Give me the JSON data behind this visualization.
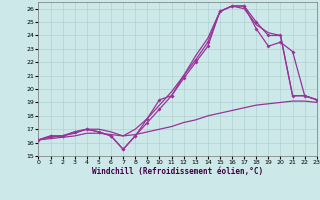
{
  "xlabel": "Windchill (Refroidissement éolien,°C)",
  "bg_color": "#cce8e8",
  "line_color": "#993399",
  "grid_color": "#aacccc",
  "spine_color": "#777777",
  "xlim": [
    0,
    23
  ],
  "ylim": [
    15,
    26.5
  ],
  "xticks": [
    0,
    1,
    2,
    3,
    4,
    5,
    6,
    7,
    8,
    9,
    10,
    11,
    12,
    13,
    14,
    15,
    16,
    17,
    18,
    19,
    20,
    21,
    22,
    23
  ],
  "yticks": [
    15,
    16,
    17,
    18,
    19,
    20,
    21,
    22,
    23,
    24,
    25,
    26
  ],
  "series": [
    {
      "x": [
        0,
        1,
        2,
        3,
        4,
        5,
        6,
        7,
        8,
        9,
        10,
        11,
        12,
        13,
        14,
        15,
        16,
        17,
        18,
        19,
        20,
        21,
        22,
        23
      ],
      "y": [
        16.2,
        16.5,
        16.5,
        16.8,
        17.0,
        16.8,
        16.5,
        15.5,
        16.5,
        17.8,
        19.2,
        19.5,
        21.0,
        22.2,
        23.5,
        25.8,
        26.2,
        26.2,
        25.0,
        24.0,
        24.0,
        19.5,
        19.5,
        19.2
      ],
      "has_marker": true,
      "lw": 0.9
    },
    {
      "x": [
        0,
        1,
        2,
        3,
        4,
        5,
        6,
        7,
        8,
        9,
        10,
        11,
        12,
        13,
        14,
        15,
        16,
        17,
        18,
        19,
        20,
        21,
        22,
        23
      ],
      "y": [
        16.2,
        16.5,
        16.5,
        16.8,
        17.0,
        16.8,
        16.5,
        15.5,
        16.5,
        17.5,
        18.5,
        19.5,
        20.8,
        22.0,
        23.2,
        25.8,
        26.2,
        26.2,
        24.5,
        23.2,
        23.5,
        22.8,
        19.5,
        19.2
      ],
      "has_marker": true,
      "lw": 0.9
    },
    {
      "x": [
        0,
        1,
        2,
        3,
        4,
        5,
        6,
        7,
        8,
        9,
        10,
        11,
        12,
        13,
        14,
        15,
        16,
        17,
        18,
        19,
        20,
        21,
        22,
        23
      ],
      "y": [
        16.2,
        16.3,
        16.4,
        16.5,
        16.7,
        16.7,
        16.6,
        16.5,
        16.6,
        16.8,
        17.0,
        17.2,
        17.5,
        17.7,
        18.0,
        18.2,
        18.4,
        18.6,
        18.8,
        18.9,
        19.0,
        19.1,
        19.1,
        19.0
      ],
      "has_marker": false,
      "lw": 0.9
    },
    {
      "x": [
        0,
        1,
        2,
        3,
        4,
        5,
        6,
        7,
        8,
        9,
        10,
        11,
        12,
        13,
        14,
        15,
        16,
        17,
        18,
        19,
        20,
        21,
        22,
        23
      ],
      "y": [
        16.2,
        16.4,
        16.5,
        16.7,
        17.0,
        17.0,
        16.8,
        16.5,
        17.0,
        17.8,
        18.8,
        19.8,
        21.0,
        22.5,
        23.8,
        25.8,
        26.2,
        26.0,
        24.8,
        24.2,
        24.0,
        19.5,
        19.5,
        19.2
      ],
      "has_marker": false,
      "lw": 0.9
    }
  ]
}
